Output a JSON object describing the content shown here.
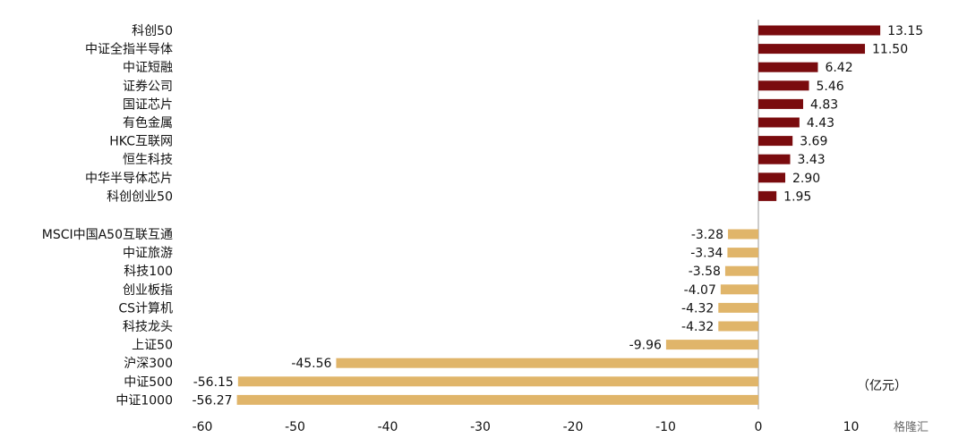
{
  "chart_data": {
    "type": "bar",
    "orientation": "horizontal",
    "categories": [
      "科创50",
      "中证全指半导体",
      "中证短融",
      "证券公司",
      "国证芯片",
      "有色金属",
      "HKC互联网",
      "恒生科技",
      "中华半导体芯片",
      "科创创业50",
      "MSCI中国A50互联互通",
      "中证旅游",
      "科技100",
      "创业板指",
      "CS计算机",
      "科技龙头",
      "上证50",
      "沪深300",
      "中证500",
      "中证1000"
    ],
    "values": [
      13.15,
      11.5,
      6.42,
      5.46,
      4.83,
      4.43,
      3.69,
      3.43,
      2.9,
      1.95,
      -3.28,
      -3.34,
      -3.58,
      -4.07,
      -4.32,
      -4.32,
      -9.96,
      -45.56,
      -56.15,
      -56.27
    ],
    "value_labels": [
      "13.15",
      "11.50",
      "6.42",
      "5.46",
      "4.83",
      "4.43",
      "3.69",
      "3.43",
      "2.90",
      "1.95",
      "-3.28",
      "-3.34",
      "-3.58",
      "-4.07",
      "-4.32",
      "-4.32",
      "-9.96",
      "-45.56",
      "-56.15",
      "-56.27"
    ],
    "xlim": [
      -60,
      10
    ],
    "xticks": [
      -60,
      -50,
      -40,
      -30,
      -20,
      -10,
      0,
      10
    ],
    "xtick_labels": [
      "-60",
      "-50",
      "-40",
      "-30",
      "-20",
      "-10",
      "0",
      "10"
    ],
    "unit": "（亿元）",
    "colors": {
      "positive": "#7a0b0e",
      "negative": "#e0b56a"
    },
    "grid": false,
    "legend": "none"
  },
  "watermark": "格隆汇"
}
